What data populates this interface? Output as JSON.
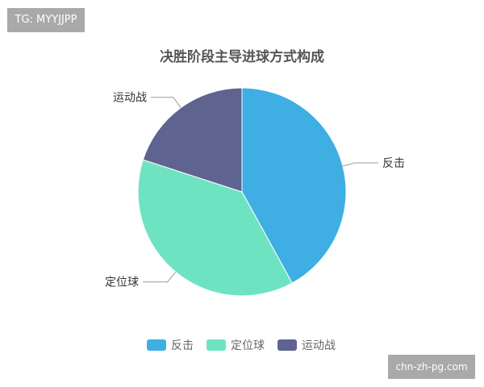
{
  "watermark_top": "TG: MYYJJPP",
  "watermark_bottom": "chn-zh-pg.com",
  "chart_data": {
    "type": "pie",
    "title": "决胜阶段主导进球方式构成",
    "categories": [
      "反击",
      "定位球",
      "运动战"
    ],
    "values": [
      42,
      38,
      20
    ],
    "colors": [
      "#3eaee3",
      "#6ee3c2",
      "#5e6390"
    ],
    "legend": [
      "反击",
      "定位球",
      "运动战"
    ],
    "legend_placement": "bottom"
  }
}
